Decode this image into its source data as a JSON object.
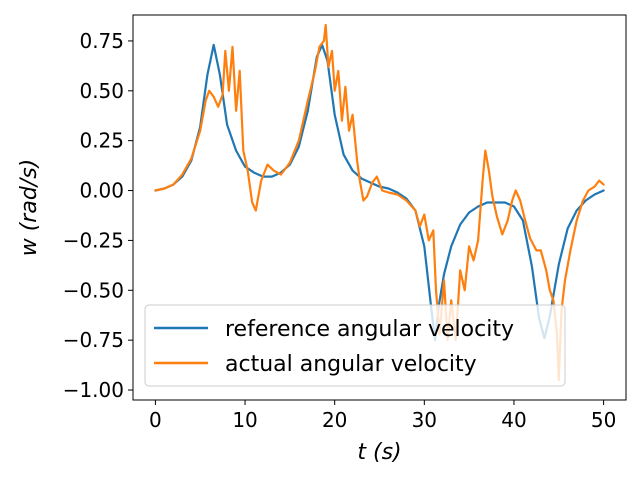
{
  "chart_data": {
    "type": "line",
    "xlabel": "t (s)",
    "ylabel": "w (rad/s)",
    "xlim": [
      -2.5,
      52.5
    ],
    "ylim": [
      -1.05,
      0.88
    ],
    "xticks": [
      0,
      10,
      20,
      30,
      40,
      50
    ],
    "xtick_labels": [
      "0",
      "10",
      "20",
      "30",
      "40",
      "50"
    ],
    "yticks": [
      0.75,
      0.5,
      0.25,
      0.0,
      -0.25,
      -0.5,
      -0.75,
      -1.0
    ],
    "ytick_labels": [
      "0.75",
      "0.50",
      "0.25",
      "0.00",
      "−0.25",
      "−0.50",
      "−0.75",
      "−1.00"
    ],
    "grid": false,
    "legend_position": "lower-left",
    "series": [
      {
        "name": "reference angular velocity",
        "color": "#1f77b4",
        "points": [
          [
            0,
            0
          ],
          [
            1,
            0.01
          ],
          [
            2,
            0.03
          ],
          [
            3,
            0.07
          ],
          [
            4,
            0.15
          ],
          [
            5,
            0.32
          ],
          [
            5.8,
            0.58
          ],
          [
            6.5,
            0.73
          ],
          [
            7.2,
            0.58
          ],
          [
            8,
            0.33
          ],
          [
            9,
            0.2
          ],
          [
            10,
            0.12
          ],
          [
            11,
            0.09
          ],
          [
            12,
            0.07
          ],
          [
            13,
            0.07
          ],
          [
            14,
            0.09
          ],
          [
            15,
            0.13
          ],
          [
            16,
            0.22
          ],
          [
            17,
            0.4
          ],
          [
            18,
            0.67
          ],
          [
            18.6,
            0.73
          ],
          [
            19.2,
            0.65
          ],
          [
            20,
            0.38
          ],
          [
            21,
            0.18
          ],
          [
            22,
            0.1
          ],
          [
            23,
            0.06
          ],
          [
            24,
            0.04
          ],
          [
            25,
            0.02
          ],
          [
            26,
            0.01
          ],
          [
            27,
            -0.01
          ],
          [
            28,
            -0.04
          ],
          [
            29,
            -0.1
          ],
          [
            30,
            -0.28
          ],
          [
            30.8,
            -0.6
          ],
          [
            31.2,
            -0.75
          ],
          [
            31.6,
            -0.58
          ],
          [
            32.2,
            -0.42
          ],
          [
            33,
            -0.28
          ],
          [
            34,
            -0.17
          ],
          [
            35,
            -0.11
          ],
          [
            36,
            -0.08
          ],
          [
            37,
            -0.06
          ],
          [
            38,
            -0.06
          ],
          [
            39,
            -0.06
          ],
          [
            40,
            -0.08
          ],
          [
            41,
            -0.15
          ],
          [
            42,
            -0.38
          ],
          [
            42.8,
            -0.64
          ],
          [
            43.4,
            -0.74
          ],
          [
            44,
            -0.63
          ],
          [
            45,
            -0.37
          ],
          [
            46,
            -0.19
          ],
          [
            47,
            -0.1
          ],
          [
            48,
            -0.05
          ],
          [
            49,
            -0.02
          ],
          [
            50,
            0
          ]
        ]
      },
      {
        "name": "actual angular velocity",
        "color": "#ff7f0e",
        "points": [
          [
            0,
            0
          ],
          [
            1,
            0.01
          ],
          [
            2,
            0.03
          ],
          [
            3,
            0.08
          ],
          [
            4,
            0.16
          ],
          [
            5,
            0.3
          ],
          [
            5.6,
            0.45
          ],
          [
            6,
            0.5
          ],
          [
            6.5,
            0.47
          ],
          [
            7,
            0.42
          ],
          [
            7.5,
            0.48
          ],
          [
            7.8,
            0.7
          ],
          [
            8.2,
            0.5
          ],
          [
            8.6,
            0.72
          ],
          [
            9,
            0.4
          ],
          [
            9.4,
            0.6
          ],
          [
            9.8,
            0.2
          ],
          [
            10.3,
            0.1
          ],
          [
            10.8,
            -0.06
          ],
          [
            11.2,
            -0.1
          ],
          [
            11.8,
            0.05
          ],
          [
            12.5,
            0.13
          ],
          [
            13.2,
            0.1
          ],
          [
            14,
            0.08
          ],
          [
            15,
            0.14
          ],
          [
            16,
            0.25
          ],
          [
            17,
            0.45
          ],
          [
            17.8,
            0.6
          ],
          [
            18.3,
            0.72
          ],
          [
            18.8,
            0.75
          ],
          [
            19,
            0.83
          ],
          [
            19.3,
            0.62
          ],
          [
            19.7,
            0.7
          ],
          [
            20,
            0.5
          ],
          [
            20.4,
            0.6
          ],
          [
            20.8,
            0.35
          ],
          [
            21.2,
            0.52
          ],
          [
            21.6,
            0.3
          ],
          [
            22,
            0.38
          ],
          [
            22.5,
            0.15
          ],
          [
            22.8,
            0.05
          ],
          [
            23.2,
            -0.05
          ],
          [
            23.6,
            -0.03
          ],
          [
            24.2,
            0.04
          ],
          [
            24.7,
            0.07
          ],
          [
            25.3,
            0.0
          ],
          [
            26,
            -0.01
          ],
          [
            27,
            -0.02
          ],
          [
            28,
            -0.05
          ],
          [
            29,
            -0.1
          ],
          [
            29.5,
            -0.18
          ],
          [
            30,
            -0.12
          ],
          [
            30.5,
            -0.25
          ],
          [
            31,
            -0.2
          ],
          [
            31.3,
            -0.5
          ],
          [
            31.7,
            -0.72
          ],
          [
            32.2,
            -0.45
          ],
          [
            32.6,
            -0.75
          ],
          [
            33,
            -0.55
          ],
          [
            33.5,
            -0.75
          ],
          [
            34,
            -0.4
          ],
          [
            34.5,
            -0.5
          ],
          [
            35,
            -0.28
          ],
          [
            35.5,
            -0.35
          ],
          [
            36,
            -0.25
          ],
          [
            36.5,
            0.05
          ],
          [
            36.8,
            0.2
          ],
          [
            37.2,
            0.1
          ],
          [
            37.6,
            -0.03
          ],
          [
            38.1,
            -0.13
          ],
          [
            38.7,
            -0.22
          ],
          [
            39.3,
            -0.15
          ],
          [
            39.8,
            -0.05
          ],
          [
            40.2,
            0.0
          ],
          [
            40.7,
            -0.05
          ],
          [
            41.2,
            -0.14
          ],
          [
            41.8,
            -0.24
          ],
          [
            42.5,
            -0.3
          ],
          [
            43,
            -0.3
          ],
          [
            43.6,
            -0.4
          ],
          [
            44,
            -0.5
          ],
          [
            44.4,
            -0.55
          ],
          [
            44.8,
            -0.72
          ],
          [
            45,
            -0.95
          ],
          [
            45.3,
            -0.6
          ],
          [
            45.7,
            -0.45
          ],
          [
            46.3,
            -0.3
          ],
          [
            47,
            -0.15
          ],
          [
            47.7,
            -0.05
          ],
          [
            48.3,
            0.0
          ],
          [
            49,
            0.02
          ],
          [
            49.5,
            0.05
          ],
          [
            50,
            0.03
          ]
        ]
      }
    ]
  }
}
